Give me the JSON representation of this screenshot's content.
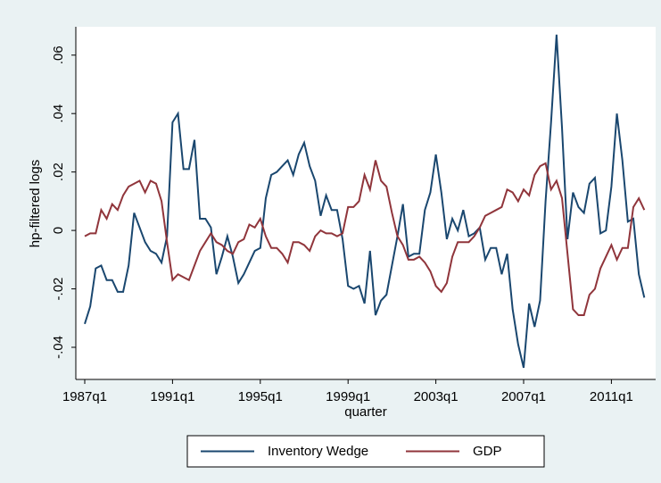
{
  "chart_data": {
    "type": "line",
    "y_label": "hp-filtered logs",
    "x_label": "quarter",
    "categories": [
      "1987q1",
      null,
      null,
      null,
      null,
      null,
      null,
      null,
      null,
      null,
      null,
      null,
      null,
      null,
      null,
      null,
      "1991q1",
      null,
      null,
      null,
      null,
      null,
      null,
      null,
      null,
      null,
      null,
      null,
      null,
      null,
      null,
      null,
      "1995q1",
      null,
      null,
      null,
      null,
      null,
      null,
      null,
      null,
      null,
      null,
      null,
      null,
      null,
      null,
      null,
      "1999q1",
      null,
      null,
      null,
      null,
      null,
      null,
      null,
      null,
      null,
      null,
      null,
      null,
      null,
      null,
      null,
      "2003q1",
      null,
      null,
      null,
      null,
      null,
      null,
      null,
      null,
      null,
      null,
      null,
      null,
      null,
      null,
      null,
      "2007q1",
      null,
      null,
      null,
      null,
      null,
      null,
      null,
      null,
      null,
      null,
      null,
      null,
      null,
      null,
      null,
      "2011q1",
      null,
      null,
      null,
      null,
      null,
      null
    ],
    "series": [
      {
        "name": "Inventory Wedge",
        "color": "#1a476f",
        "values": [
          -0.032,
          -0.026,
          -0.013,
          -0.012,
          -0.017,
          -0.017,
          -0.021,
          -0.021,
          -0.012,
          0.006,
          0.001,
          -0.004,
          -0.007,
          -0.008,
          -0.011,
          -0.002,
          0.037,
          0.04,
          0.021,
          0.021,
          0.031,
          0.004,
          0.004,
          0.001,
          -0.015,
          -0.009,
          -0.002,
          -0.009,
          -0.018,
          -0.015,
          -0.011,
          -0.007,
          -0.006,
          0.011,
          0.019,
          0.02,
          0.022,
          0.024,
          0.019,
          0.026,
          0.03,
          0.022,
          0.017,
          0.005,
          0.012,
          0.007,
          0.007,
          -0.003,
          -0.019,
          -0.02,
          -0.019,
          -0.025,
          -0.007,
          -0.029,
          -0.024,
          -0.022,
          -0.012,
          -0.002,
          0.009,
          -0.009,
          -0.008,
          -0.008,
          0.007,
          0.013,
          0.026,
          0.013,
          -0.003,
          0.004,
          0.0,
          0.007,
          -0.002,
          -0.001,
          0.001,
          -0.01,
          -0.006,
          -0.006,
          -0.015,
          -0.008,
          -0.027,
          -0.039,
          -0.047,
          -0.025,
          -0.033,
          -0.024,
          0.01,
          0.037,
          0.067,
          0.035,
          -0.003,
          0.013,
          0.008,
          0.006,
          0.016,
          0.018,
          -0.001,
          0.0,
          0.015,
          0.04,
          0.024,
          0.003,
          0.004,
          -0.015,
          -0.023
        ]
      },
      {
        "name": "GDP",
        "color": "#90353b",
        "values": [
          -0.002,
          -0.001,
          -0.001,
          0.007,
          0.004,
          0.009,
          0.007,
          0.012,
          0.015,
          0.016,
          0.017,
          0.013,
          0.017,
          0.016,
          0.01,
          -0.004,
          -0.017,
          -0.015,
          -0.016,
          -0.017,
          -0.012,
          -0.007,
          -0.004,
          -0.001,
          -0.004,
          -0.005,
          -0.007,
          -0.008,
          -0.004,
          -0.003,
          0.002,
          0.001,
          0.004,
          -0.002,
          -0.006,
          -0.006,
          -0.008,
          -0.011,
          -0.004,
          -0.004,
          -0.005,
          -0.007,
          -0.002,
          0.0,
          -0.001,
          -0.001,
          -0.002,
          -0.001,
          0.008,
          0.008,
          0.01,
          0.019,
          0.014,
          0.024,
          0.017,
          0.015,
          0.006,
          -0.002,
          -0.005,
          -0.01,
          -0.01,
          -0.009,
          -0.011,
          -0.014,
          -0.019,
          -0.021,
          -0.018,
          -0.009,
          -0.004,
          -0.004,
          -0.004,
          -0.002,
          0.001,
          0.005,
          0.006,
          0.007,
          0.008,
          0.014,
          0.013,
          0.01,
          0.014,
          0.012,
          0.019,
          0.022,
          0.023,
          0.014,
          0.017,
          0.011,
          -0.008,
          -0.027,
          -0.029,
          -0.029,
          -0.022,
          -0.02,
          -0.013,
          -0.009,
          -0.005,
          -0.01,
          -0.006,
          -0.006,
          0.008,
          0.011,
          0.007
        ]
      }
    ],
    "ylim": [
      -0.051,
      0.0697
    ],
    "yticks": [
      {
        "value": -0.04,
        "label": "-.04"
      },
      {
        "value": -0.02,
        "label": "-.02"
      },
      0,
      {
        "value": 0.02,
        "label": ".02"
      },
      {
        "value": 0.04,
        "label": ".04"
      },
      {
        "value": 0.06,
        "label": ".06"
      }
    ],
    "legend": "bottom"
  }
}
